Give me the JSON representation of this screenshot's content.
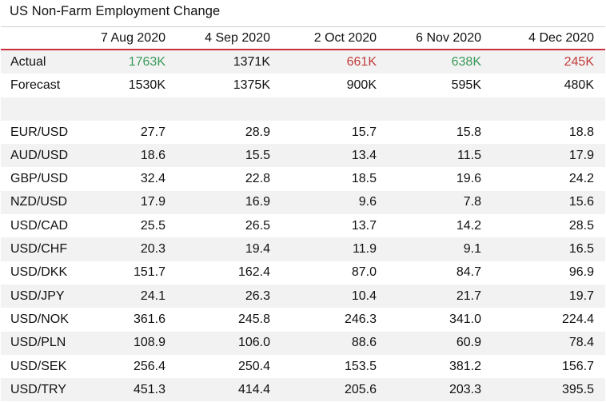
{
  "title": "US Non-Farm Employment Change",
  "columns": [
    "",
    "7 Aug 2020",
    "4 Sep 2020",
    "2 Oct 2020",
    "6 Nov 2020",
    "4 Dec 2020"
  ],
  "colors": {
    "positive": "#3a9a5a",
    "negative": "#c23b3b",
    "header_rule": "#c9303a",
    "stripe": "#f2f2f2"
  },
  "rows": [
    {
      "label": "Actual",
      "cells": [
        {
          "v": "1763K",
          "tone": "green"
        },
        {
          "v": "1371K",
          "tone": ""
        },
        {
          "v": "661K",
          "tone": "red"
        },
        {
          "v": "638K",
          "tone": "green"
        },
        {
          "v": "245K",
          "tone": "red"
        }
      ]
    },
    {
      "label": "Forecast",
      "cells": [
        {
          "v": "1530K",
          "tone": ""
        },
        {
          "v": "1375K",
          "tone": ""
        },
        {
          "v": "900K",
          "tone": ""
        },
        {
          "v": "595K",
          "tone": ""
        },
        {
          "v": "480K",
          "tone": ""
        }
      ]
    },
    {
      "label": "",
      "cells": [
        {
          "v": "",
          "tone": ""
        },
        {
          "v": "",
          "tone": ""
        },
        {
          "v": "",
          "tone": ""
        },
        {
          "v": "",
          "tone": ""
        },
        {
          "v": "",
          "tone": ""
        }
      ]
    },
    {
      "label": "EUR/USD",
      "cells": [
        {
          "v": "27.7"
        },
        {
          "v": "28.9"
        },
        {
          "v": "15.7"
        },
        {
          "v": "15.8"
        },
        {
          "v": "18.8"
        }
      ]
    },
    {
      "label": "AUD/USD",
      "cells": [
        {
          "v": "18.6"
        },
        {
          "v": "15.5"
        },
        {
          "v": "13.4"
        },
        {
          "v": "11.5"
        },
        {
          "v": "17.9"
        }
      ]
    },
    {
      "label": "GBP/USD",
      "cells": [
        {
          "v": "32.4"
        },
        {
          "v": "22.8"
        },
        {
          "v": "18.5"
        },
        {
          "v": "19.6"
        },
        {
          "v": "24.2"
        }
      ]
    },
    {
      "label": "NZD/USD",
      "cells": [
        {
          "v": "17.9"
        },
        {
          "v": "16.9"
        },
        {
          "v": "9.6"
        },
        {
          "v": "7.8"
        },
        {
          "v": "15.6"
        }
      ]
    },
    {
      "label": "USD/CAD",
      "cells": [
        {
          "v": "25.5"
        },
        {
          "v": "26.5"
        },
        {
          "v": "13.7"
        },
        {
          "v": "14.2"
        },
        {
          "v": "28.5"
        }
      ]
    },
    {
      "label": "USD/CHF",
      "cells": [
        {
          "v": "20.3"
        },
        {
          "v": "19.4"
        },
        {
          "v": "11.9"
        },
        {
          "v": "9.1"
        },
        {
          "v": "16.5"
        }
      ]
    },
    {
      "label": "USD/DKK",
      "cells": [
        {
          "v": "151.7"
        },
        {
          "v": "162.4"
        },
        {
          "v": "87.0"
        },
        {
          "v": "84.7"
        },
        {
          "v": "96.9"
        }
      ]
    },
    {
      "label": "USD/JPY",
      "cells": [
        {
          "v": "24.1"
        },
        {
          "v": "26.3"
        },
        {
          "v": "10.4"
        },
        {
          "v": "21.7"
        },
        {
          "v": "19.7"
        }
      ]
    },
    {
      "label": "USD/NOK",
      "cells": [
        {
          "v": "361.6"
        },
        {
          "v": "245.8"
        },
        {
          "v": "246.3"
        },
        {
          "v": "341.0"
        },
        {
          "v": "224.4"
        }
      ]
    },
    {
      "label": "USD/PLN",
      "cells": [
        {
          "v": "108.9"
        },
        {
          "v": "106.0"
        },
        {
          "v": "88.6"
        },
        {
          "v": "60.9"
        },
        {
          "v": "78.4"
        }
      ]
    },
    {
      "label": "USD/SEK",
      "cells": [
        {
          "v": "256.4"
        },
        {
          "v": "250.4"
        },
        {
          "v": "153.5"
        },
        {
          "v": "381.2"
        },
        {
          "v": "156.7"
        }
      ]
    },
    {
      "label": "USD/TRY",
      "cells": [
        {
          "v": "451.3"
        },
        {
          "v": "414.4"
        },
        {
          "v": "205.6"
        },
        {
          "v": "203.3"
        },
        {
          "v": "395.5"
        }
      ]
    }
  ]
}
